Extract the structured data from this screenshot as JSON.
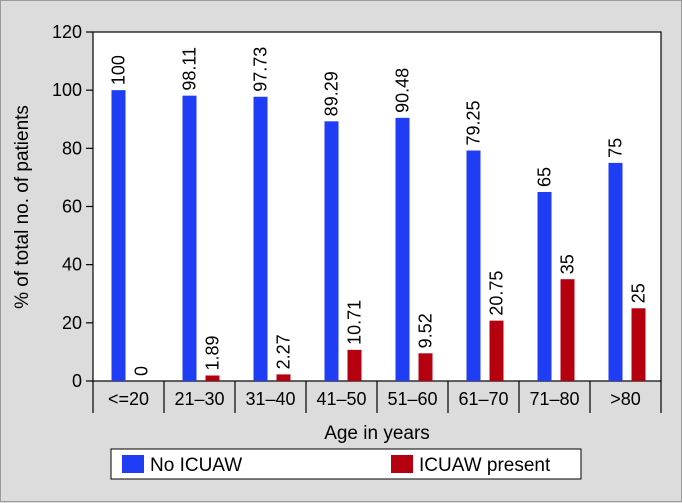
{
  "chart_data": {
    "type": "bar",
    "title": "",
    "xlabel": "Age in years",
    "ylabel": "% of total no. of patients",
    "ylim": [
      0,
      120
    ],
    "yticks": [
      0,
      20,
      40,
      60,
      80,
      100,
      120
    ],
    "categories": [
      "<=20",
      "21–30",
      "31–40",
      "41–50",
      "51–60",
      "61–70",
      "71–80",
      ">80"
    ],
    "series": [
      {
        "name": "No ICUAW",
        "color": "#1f3df5",
        "values": [
          100,
          98.11,
          97.73,
          89.29,
          90.48,
          79.25,
          65,
          75
        ],
        "labels": [
          "100",
          "98.11",
          "97.73",
          "89.29",
          "90.48",
          "79.25",
          "65",
          "75"
        ]
      },
      {
        "name": "ICUAW present",
        "color": "#b5000f",
        "values": [
          0,
          1.89,
          2.27,
          10.71,
          9.52,
          20.75,
          35,
          25
        ],
        "labels": [
          "0",
          "1.89",
          "2.27",
          "10.71",
          "9.52",
          "20.75",
          "35",
          "25"
        ]
      }
    ],
    "legend_position": "bottom",
    "grid": false
  }
}
